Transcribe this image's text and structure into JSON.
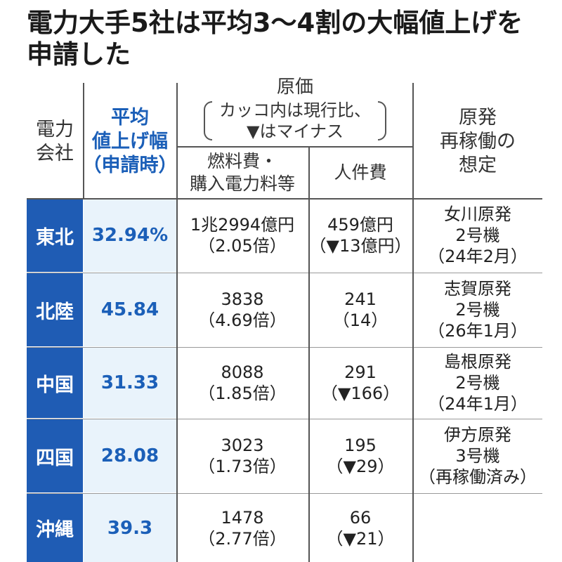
{
  "title": {
    "line1": "電力大手5社は平均3〜4割の大幅値上げを",
    "line2": "申請した"
  },
  "header": {
    "company_line1": "電力",
    "company_line2": "会社",
    "avg_line1": "平均",
    "avg_line2": "値上げ幅",
    "avg_line3": "（申請時）",
    "cost_title": "原価",
    "cost_note_line1": "カッコ内は現行比、",
    "cost_note_line2": "▼はマイナス",
    "fuel_line1": "燃料費・",
    "fuel_line2": "購入電力料等",
    "labor": "人件費",
    "nuke_line1": "原発",
    "nuke_line2": "再稼働の",
    "nuke_line3": "想定"
  },
  "rows": [
    {
      "company": "東北",
      "avg": "32.94%",
      "fuel": [
        "1兆2994億円",
        "（2.05倍）"
      ],
      "labor": [
        "459億円",
        "（▼13億円）"
      ],
      "nuke": [
        "女川原発",
        "2号機",
        "（24年2月）"
      ]
    },
    {
      "company": "北陸",
      "avg": "45.84",
      "fuel": [
        "3838",
        "（4.69倍）"
      ],
      "labor": [
        "241",
        "（14）"
      ],
      "nuke": [
        "志賀原発",
        "2号機",
        "（26年1月）"
      ]
    },
    {
      "company": "中国",
      "avg": "31.33",
      "fuel": [
        "8088",
        "（1.85倍）"
      ],
      "labor": [
        "291",
        "（▼166）"
      ],
      "nuke": [
        "島根原発",
        "2号機",
        "（24年1月）"
      ]
    },
    {
      "company": "四国",
      "avg": "28.08",
      "fuel": [
        "3023",
        "（1.73倍）"
      ],
      "labor": [
        "195",
        "（▼29）"
      ],
      "nuke": [
        "伊方原発",
        "3号機",
        "（再稼働済み）"
      ]
    },
    {
      "company": "沖縄",
      "avg": "39.3",
      "fuel": [
        "1478",
        "（2.77倍）"
      ],
      "labor": [
        "66",
        "（▼21）"
      ],
      "nuke": []
    }
  ],
  "colors": {
    "company_bg": "#1f5cb4",
    "avg_bg": "#e9f3fb",
    "avg_text": "#1b5fb8"
  }
}
